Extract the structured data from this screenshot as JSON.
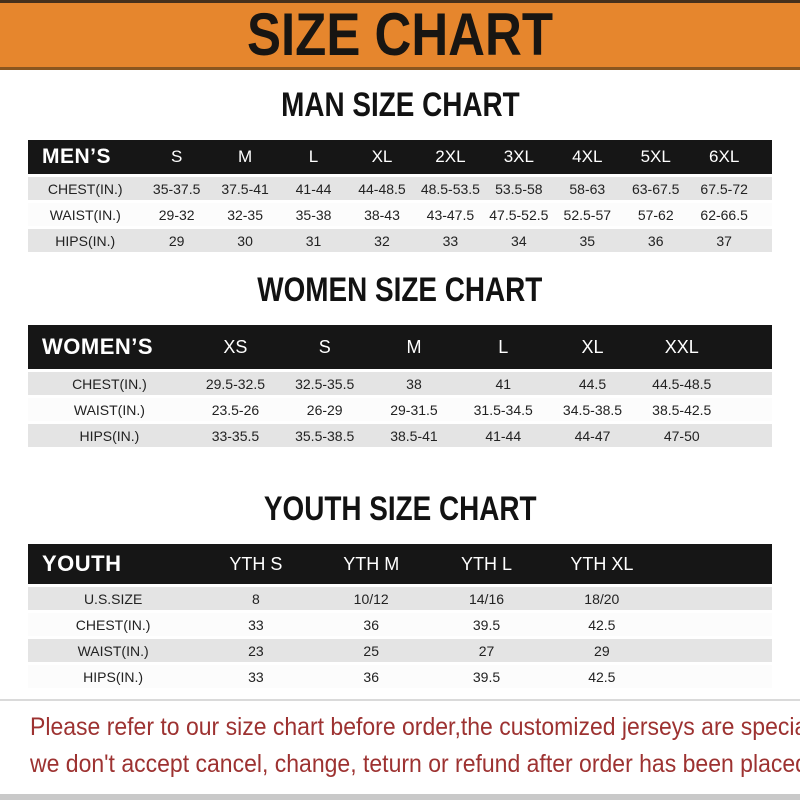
{
  "banner": {
    "title": "SIZE CHART"
  },
  "colors": {
    "banner_orange": "#E6862D",
    "band_black": "#161616",
    "row_gray": "#E4E4E4",
    "row_white": "#FCFCFC",
    "disclaimer_red": "#9D3231"
  },
  "sections": [
    {
      "id": "men",
      "title": "MAN SIZE CHART",
      "band_label": "MEN’S",
      "columns": [
        "S",
        "M",
        "L",
        "XL",
        "2XL",
        "3XL",
        "4XL",
        "5XL",
        "6XL"
      ],
      "rows": [
        {
          "label": "CHEST(IN.)",
          "values": [
            "35-37.5",
            "37.5-41",
            "41-44",
            "44-48.5",
            "48.5-53.5",
            "53.5-58",
            "58-63",
            "63-67.5",
            "67.5-72"
          ]
        },
        {
          "label": "WAIST(IN.)",
          "values": [
            "29-32",
            "32-35",
            "35-38",
            "38-43",
            "43-47.5",
            "47.5-52.5",
            "52.5-57",
            "57-62",
            "62-66.5"
          ]
        },
        {
          "label": "HIPS(IN.)",
          "values": [
            "29",
            "30",
            "31",
            "32",
            "33",
            "34",
            "35",
            "36",
            "37"
          ]
        }
      ]
    },
    {
      "id": "women",
      "title": "WOMEN SIZE CHART",
      "band_label": "WOMEN’S",
      "columns": [
        "XS",
        "S",
        "M",
        "L",
        "XL",
        "XXL"
      ],
      "rows": [
        {
          "label": "CHEST(IN.)",
          "values": [
            "29.5-32.5",
            "32.5-35.5",
            "38",
            "41",
            "44.5",
            "44.5-48.5"
          ]
        },
        {
          "label": "WAIST(IN.)",
          "values": [
            "23.5-26",
            "26-29",
            "29-31.5",
            "31.5-34.5",
            "34.5-38.5",
            "38.5-42.5"
          ]
        },
        {
          "label": "HIPS(IN.)",
          "values": [
            "33-35.5",
            "35.5-38.5",
            "38.5-41",
            "41-44",
            "44-47",
            "47-50"
          ]
        }
      ]
    },
    {
      "id": "youth",
      "title": "YOUTH SIZE CHART",
      "band_label": "YOUTH",
      "columns": [
        "YTH S",
        "YTH M",
        "YTH L",
        "YTH XL"
      ],
      "rows": [
        {
          "label": "U.S.SIZE",
          "values": [
            "8",
            "10/12",
            "14/16",
            "18/20"
          ]
        },
        {
          "label": "CHEST(IN.)",
          "values": [
            "33",
            "36",
            "39.5",
            "42.5"
          ]
        },
        {
          "label": "WAIST(IN.)",
          "values": [
            "23",
            "25",
            "27",
            "29"
          ]
        },
        {
          "label": "HIPS(IN.)",
          "values": [
            "33",
            "36",
            "39.5",
            "42.5"
          ]
        }
      ]
    }
  ],
  "footer": {
    "line1": "Please refer to our size chart before order,the customized jerseys are special products,",
    "line2": "we don't accept cancel, change, teturn or refund after order has been placed!"
  }
}
